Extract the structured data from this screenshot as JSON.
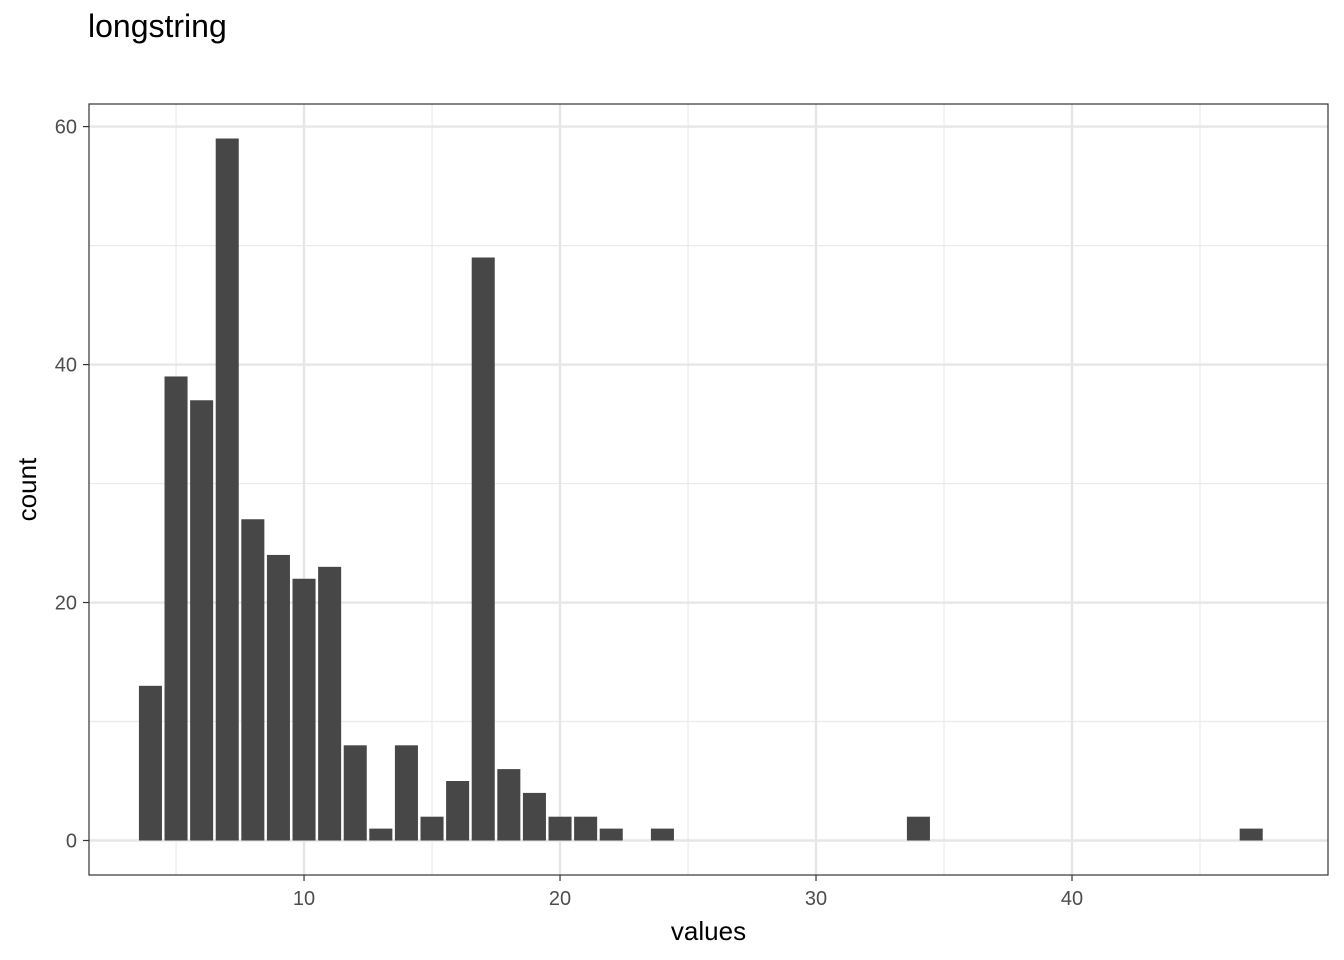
{
  "chart_data": {
    "type": "bar",
    "title": "longstring",
    "xlabel": "values",
    "ylabel": "count",
    "xlim": [
      1.6,
      50
    ],
    "ylim": [
      -2.9,
      61.9
    ],
    "x_ticks": [
      10,
      20,
      30,
      40
    ],
    "y_ticks": [
      0,
      20,
      40,
      60
    ],
    "x_tick_labels": [
      "10",
      "20",
      "30",
      "40"
    ],
    "y_tick_labels": [
      "0",
      "20",
      "40",
      "60"
    ],
    "x": [
      4,
      5,
      6,
      7,
      8,
      9,
      10,
      11,
      12,
      13,
      14,
      15,
      16,
      17,
      18,
      19,
      20,
      21,
      22,
      24,
      34,
      47
    ],
    "values": [
      13,
      39,
      37,
      59,
      27,
      24,
      22,
      23,
      8,
      1,
      8,
      2,
      5,
      49,
      6,
      4,
      2,
      2,
      1,
      1,
      2,
      1
    ],
    "bar_color": "#474747",
    "grid": true,
    "theme": "bw"
  }
}
